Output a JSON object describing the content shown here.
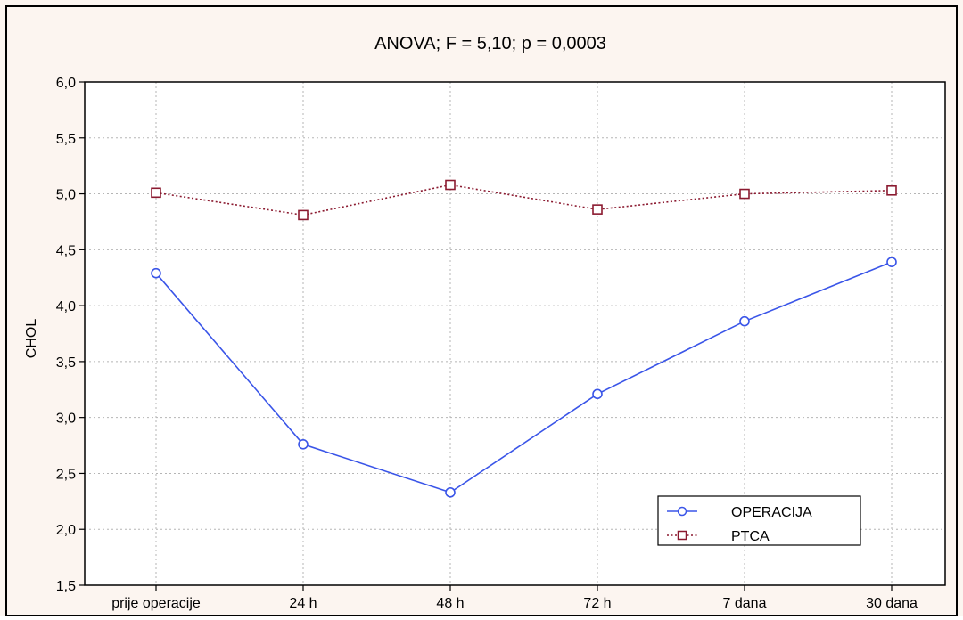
{
  "colors": {
    "panel_background": "#fcf5f0",
    "plot_background": "#ffffff",
    "frame": "#000000",
    "grid": "#b5b5b5",
    "operacija": "#3a55e8",
    "ptca": "#8b1a30"
  },
  "chart_data": {
    "type": "line",
    "title": "ANOVA;  F = 5,10;  p = 0,0003",
    "xlabel": "",
    "ylabel": "CHOL",
    "categories": [
      "prije operacije",
      "24 h",
      "48 h",
      "72 h",
      "7 dana",
      "30 dana"
    ],
    "ylim": [
      1.5,
      6.0
    ],
    "yticks": [
      "1,5",
      "2,0",
      "2,5",
      "3,0",
      "3,5",
      "4,0",
      "4,5",
      "5,0",
      "5,5",
      "6,0"
    ],
    "grid": true,
    "legend_position": "bottom-right",
    "series": [
      {
        "name": "OPERACIJA",
        "values": [
          4.29,
          2.76,
          2.33,
          3.21,
          3.86,
          4.39
        ],
        "line_style": "solid",
        "marker": "circle",
        "color": "#3a55e8"
      },
      {
        "name": "PTCA",
        "values": [
          5.01,
          4.81,
          5.08,
          4.86,
          5.0,
          5.03
        ],
        "line_style": "dotted",
        "marker": "square",
        "color": "#8b1a30"
      }
    ]
  }
}
